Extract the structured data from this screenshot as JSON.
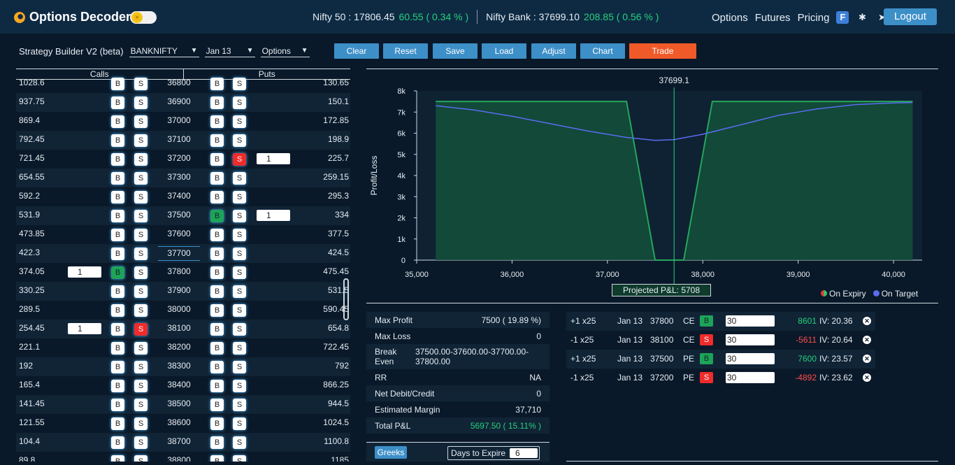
{
  "app": {
    "title": "Options Decoder"
  },
  "ticker": {
    "nifty_label": "Nifty 50 : 17806.45",
    "nifty_change": "60.55 ( 0.34 % )",
    "bank_label": "Nifty Bank : 37699.10",
    "bank_change": "208.85 ( 0.56 % )"
  },
  "nav": {
    "options": "Options",
    "futures": "Futures",
    "pricing": "Pricing",
    "logout": "Logout"
  },
  "toolbar": {
    "title": "Strategy Builder V2 (beta)",
    "symbol": "BANKNIFTY",
    "expiry": "Jan 13",
    "instrument": "Options",
    "clear": "Clear",
    "reset": "Reset",
    "save": "Save",
    "load": "Load",
    "adjust": "Adjust",
    "chart": "Chart",
    "trade": "Trade"
  },
  "chain": {
    "calls_header": "Calls",
    "puts_header": "Puts",
    "buy_label": "B",
    "sell_label": "S",
    "rows": [
      {
        "call": "1028.6",
        "strike": "36800",
        "put": "130.65"
      },
      {
        "call": "937.75",
        "strike": "36900",
        "put": "150.1"
      },
      {
        "call": "869.4",
        "strike": "37000",
        "put": "172.85"
      },
      {
        "call": "792.45",
        "strike": "37100",
        "put": "198.9"
      },
      {
        "call": "721.45",
        "strike": "37200",
        "put": "225.7",
        "put_sell": true,
        "put_qty": "1"
      },
      {
        "call": "654.55",
        "strike": "37300",
        "put": "259.15"
      },
      {
        "call": "592.2",
        "strike": "37400",
        "put": "295.3"
      },
      {
        "call": "531.9",
        "strike": "37500",
        "put": "334",
        "put_buy": true,
        "put_qty": "1"
      },
      {
        "call": "473.85",
        "strike": "37600",
        "put": "377.5"
      },
      {
        "call": "422.3",
        "strike": "37700",
        "put": "424.5",
        "atm": true
      },
      {
        "call": "374.05",
        "strike": "37800",
        "put": "475.45",
        "call_buy": true,
        "call_qty": "1"
      },
      {
        "call": "330.25",
        "strike": "37900",
        "put": "531.5"
      },
      {
        "call": "289.5",
        "strike": "38000",
        "put": "590.45"
      },
      {
        "call": "254.45",
        "strike": "38100",
        "put": "654.8",
        "call_sell": true,
        "call_qty": "1"
      },
      {
        "call": "221.1",
        "strike": "38200",
        "put": "722.45"
      },
      {
        "call": "192",
        "strike": "38300",
        "put": "792"
      },
      {
        "call": "165.4",
        "strike": "38400",
        "put": "866.25"
      },
      {
        "call": "141.45",
        "strike": "38500",
        "put": "944.5"
      },
      {
        "call": "121.55",
        "strike": "38600",
        "put": "1024.5"
      },
      {
        "call": "104.4",
        "strike": "38700",
        "put": "1100.8"
      },
      {
        "call": "89.8",
        "strike": "38800",
        "put": "1185"
      }
    ]
  },
  "chart_data": {
    "type": "line",
    "ylabel": "Profit/Loss",
    "xlim": [
      35000,
      40300
    ],
    "ylim": [
      0,
      8000
    ],
    "x_ticks": [
      35000,
      36000,
      37000,
      38000,
      39000,
      40000
    ],
    "x_tick_labels": [
      "35,000",
      "36,000",
      "37,000",
      "38,000",
      "39,000",
      "40,000"
    ],
    "y_ticks": [
      0,
      1000,
      2000,
      3000,
      4000,
      5000,
      6000,
      7000,
      8000
    ],
    "y_tick_labels": [
      "0",
      "1k",
      "2k",
      "3k",
      "4k",
      "5k",
      "6k",
      "7k",
      "8k"
    ],
    "spot": 37699.1,
    "spot_label": "37699.1",
    "series": [
      {
        "name": "On Expiry",
        "color": "#26a65b",
        "x": [
          35200,
          37200,
          37500,
          37800,
          38100,
          40200
        ],
        "y": [
          7500,
          7500,
          0,
          0,
          7500,
          7500
        ]
      },
      {
        "name": "On Target",
        "color": "#5b6cf0",
        "x": [
          35200,
          35600,
          36000,
          36400,
          36800,
          37200,
          37500,
          37700,
          38000,
          38400,
          38800,
          39200,
          39600,
          40000,
          40200
        ],
        "y": [
          7300,
          7100,
          6800,
          6450,
          6100,
          5800,
          5660,
          5700,
          5950,
          6400,
          6850,
          7150,
          7350,
          7430,
          7450
        ]
      }
    ],
    "legend": "bottom-right",
    "legend_expiry": "On Expiry",
    "legend_target": "On Target",
    "expiry_color": "#2ecc71",
    "expiry_color_alt": "#e53935",
    "target_color": "#5b6cf0"
  },
  "projected": "Projected P&L: 5708",
  "stats": {
    "max_profit_k": "Max Profit",
    "max_profit_v": "7500 ( 19.89 %)",
    "max_loss_k": "Max Loss",
    "max_loss_v": "0",
    "be_k": "Break Even",
    "be_v": "37500.00-37600.00-37700.00-37800.00",
    "rr_k": "RR",
    "rr_v": "NA",
    "net_k": "Net Debit/Credit",
    "net_v": "0",
    "margin_k": "Estimated Margin",
    "margin_v": "37,710",
    "total_k": "Total P&L",
    "total_v": "5697.50 ( 15.11% )"
  },
  "greeks": {
    "button": "Greeks",
    "dte_label": "Days to Expire",
    "dte_value": "6"
  },
  "legs": [
    {
      "qty": "+1 x25",
      "expiry": "Jan 13",
      "strike": "37800",
      "type": "CE",
      "side": "B",
      "price": "30",
      "pnl": "8601",
      "iv": "IV: 20.36"
    },
    {
      "qty": "-1 x25",
      "expiry": "Jan 13",
      "strike": "38100",
      "type": "CE",
      "side": "S",
      "price": "30",
      "pnl": "-5611",
      "iv": "IV: 20.64"
    },
    {
      "qty": "+1 x25",
      "expiry": "Jan 13",
      "strike": "37500",
      "type": "PE",
      "side": "B",
      "price": "30",
      "pnl": "7600",
      "iv": "IV: 23.57"
    },
    {
      "qty": "-1 x25",
      "expiry": "Jan 13",
      "strike": "37200",
      "type": "PE",
      "side": "S",
      "price": "30",
      "pnl": "-4892",
      "iv": "IV: 23.62"
    }
  ]
}
